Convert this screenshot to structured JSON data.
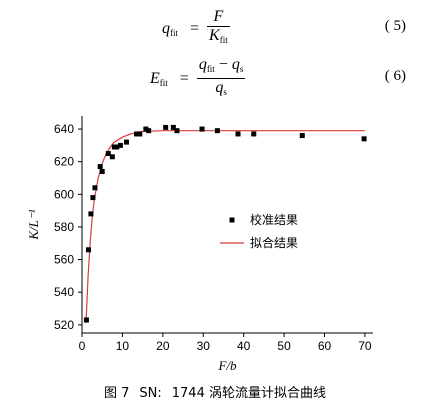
{
  "equations": [
    {
      "lhs": "q",
      "lhs_sub": "fit",
      "num": "F",
      "den": "K",
      "den_sub": "fit",
      "number": "( 5)"
    },
    {
      "lhs": "E",
      "lhs_sub": "fit",
      "num_a": "q",
      "num_a_sub": "fit",
      "num_minus": " − ",
      "num_b": "q",
      "num_b_sub": "s",
      "den": "q",
      "den_sub": "s",
      "number": "( 6)"
    }
  ],
  "chart_data": {
    "type": "scatter",
    "xlabel": "F/b",
    "ylabel": "K/L⁻¹",
    "xlim": [
      0,
      72
    ],
    "ylim": [
      515,
      648
    ],
    "xticks": [
      0,
      10,
      20,
      30,
      40,
      50,
      60,
      70
    ],
    "yticks": [
      520,
      540,
      560,
      580,
      600,
      620,
      640
    ],
    "legend_position": "right",
    "series": [
      {
        "name": "校准结果",
        "kind": "scatter",
        "color": "#000000",
        "points": [
          [
            1.1,
            523
          ],
          [
            1.6,
            566
          ],
          [
            2.2,
            588
          ],
          [
            2.7,
            598
          ],
          [
            3.2,
            604
          ],
          [
            4.5,
            617
          ],
          [
            5.0,
            614
          ],
          [
            6.5,
            625
          ],
          [
            7.5,
            623
          ],
          [
            8.0,
            629
          ],
          [
            8.6,
            629
          ],
          [
            9.5,
            630
          ],
          [
            11.0,
            632
          ],
          [
            13.5,
            637
          ],
          [
            14.3,
            637
          ],
          [
            15.8,
            640
          ],
          [
            16.5,
            639
          ],
          [
            20.7,
            641
          ],
          [
            22.6,
            641
          ],
          [
            23.5,
            639
          ],
          [
            29.7,
            640
          ],
          [
            33.5,
            639
          ],
          [
            38.6,
            637
          ],
          [
            42.5,
            637
          ],
          [
            54.5,
            636
          ],
          [
            69.8,
            634
          ]
        ]
      },
      {
        "name": "拟合结果",
        "kind": "line",
        "color": "#d83c3c",
        "points": [
          [
            1.0,
            521
          ],
          [
            1.5,
            550
          ],
          [
            2.0,
            570
          ],
          [
            2.5,
            585
          ],
          [
            3.0,
            596
          ],
          [
            4.0,
            610
          ],
          [
            5.0,
            619
          ],
          [
            6.0,
            625
          ],
          [
            7.0,
            629
          ],
          [
            8.0,
            632
          ],
          [
            10.0,
            635
          ],
          [
            12.0,
            637
          ],
          [
            15.0,
            638.5
          ],
          [
            20.0,
            639
          ],
          [
            30.0,
            639
          ],
          [
            45.0,
            639
          ],
          [
            70.0,
            639
          ]
        ]
      }
    ]
  },
  "caption": {
    "fig": "图 7",
    "model": "SN:",
    "text": "1744 涡轮流量计拟合曲线"
  }
}
